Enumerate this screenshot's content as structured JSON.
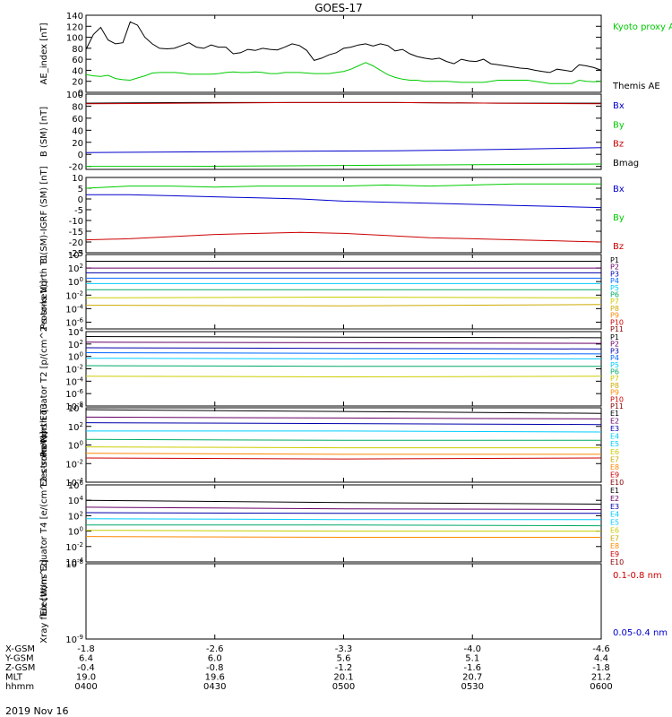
{
  "title": "GOES-17",
  "date_label": "2019 Nov 16",
  "colors": {
    "axis": "#000000",
    "black": "#000000",
    "green": "#00cc00",
    "blue": "#0000cc",
    "red": "#cc0000",
    "darkred": "#aa0000"
  },
  "time_axis": {
    "row_labels": [
      "X-GSM",
      "Y-GSM",
      "Z-GSM",
      "MLT",
      "hhmm"
    ],
    "ticks": [
      {
        "hhmm": "0400",
        "x_gsm": "-1.8",
        "y_gsm": "6.4",
        "z_gsm": "-0.4",
        "mlt": "19.0"
      },
      {
        "hhmm": "0430",
        "x_gsm": "-2.6",
        "y_gsm": "6.0",
        "z_gsm": "-0.8",
        "mlt": "19.6"
      },
      {
        "hhmm": "0500",
        "x_gsm": "-3.3",
        "y_gsm": "5.6",
        "z_gsm": "-1.2",
        "mlt": "20.1"
      },
      {
        "hhmm": "0530",
        "x_gsm": "-4.0",
        "y_gsm": "5.1",
        "z_gsm": "-1.6",
        "mlt": "20.7"
      },
      {
        "hhmm": "0600",
        "x_gsm": "-4.6",
        "y_gsm": "4.4",
        "z_gsm": "-1.8",
        "mlt": "21.2"
      }
    ]
  },
  "chart_data": [
    {
      "type": "line",
      "ylabel": "AE_index [nT]",
      "ylim": [
        0,
        140
      ],
      "yticks": [
        "0",
        "20",
        "40",
        "60",
        "80",
        "100",
        "120",
        "140"
      ],
      "legend": [
        {
          "label": "Kyoto proxy AE",
          "color": "#00cc00"
        },
        {
          "label": "Themis AE",
          "color": "#000000"
        }
      ],
      "series": [
        {
          "name": "Themis AE",
          "color": "#000000",
          "values": [
            78,
            105,
            118,
            95,
            88,
            90,
            128,
            122,
            100,
            88,
            80,
            79,
            80,
            85,
            90,
            82,
            80,
            86,
            82,
            82,
            70,
            72,
            78,
            76,
            80,
            78,
            77,
            82,
            88,
            85,
            76,
            58,
            62,
            68,
            72,
            80,
            82,
            86,
            88,
            84,
            88,
            85,
            75,
            78,
            70,
            65,
            62,
            60,
            62,
            56,
            52,
            60,
            57,
            56,
            60,
            52,
            50,
            48,
            46,
            44,
            43,
            40,
            38,
            36,
            42,
            40,
            38,
            50,
            48,
            45,
            40
          ]
        },
        {
          "name": "Kyoto proxy AE",
          "color": "#00cc00",
          "values": [
            32,
            30,
            29,
            31,
            25,
            23,
            22,
            26,
            30,
            35,
            36,
            36,
            36,
            35,
            33,
            33,
            33,
            33,
            34,
            36,
            37,
            36,
            36,
            37,
            36,
            34,
            34,
            36,
            36,
            36,
            35,
            34,
            34,
            34,
            36,
            38,
            42,
            48,
            54,
            48,
            40,
            32,
            27,
            24,
            22,
            22,
            20,
            20,
            20,
            20,
            19,
            18,
            18,
            18,
            18,
            20,
            22,
            22,
            22,
            22,
            22,
            20,
            18,
            16,
            16,
            16,
            16,
            22,
            20,
            19,
            20
          ]
        }
      ]
    },
    {
      "type": "line",
      "ylabel": "B (SM) [nT]",
      "ylim": [
        -25,
        100
      ],
      "yticks": [
        "-20",
        "0",
        "20",
        "40",
        "60",
        "80",
        "100"
      ],
      "legend": [
        {
          "label": "Bx",
          "color": "#0000cc"
        },
        {
          "label": "By",
          "color": "#00cc00"
        },
        {
          "label": "Bz",
          "color": "#cc0000"
        },
        {
          "label": "Bmag",
          "color": "#000000"
        }
      ],
      "series": [
        {
          "name": "Bmag",
          "color": "#000000",
          "values": [
            85,
            86,
            86,
            86,
            85,
            85
          ]
        },
        {
          "name": "Bz",
          "color": "#cc0000",
          "values": [
            84,
            85,
            86,
            86,
            85,
            84
          ]
        },
        {
          "name": "Bx",
          "color": "#0000cc",
          "values": [
            3,
            4,
            5,
            6,
            8,
            11
          ]
        },
        {
          "name": "By",
          "color": "#00cc00",
          "values": [
            -20,
            -20,
            -19,
            -18,
            -17,
            -16
          ]
        }
      ]
    },
    {
      "type": "line",
      "ylabel": "B (SM)-IGRF (SM) [nT]",
      "ylim": [
        -25,
        10
      ],
      "yticks": [
        "-25",
        "-20",
        "-15",
        "-10",
        "-5",
        "0",
        "5",
        "10"
      ],
      "legend": [
        {
          "label": "Bx",
          "color": "#0000cc"
        },
        {
          "label": "By",
          "color": "#00cc00"
        },
        {
          "label": "Bz",
          "color": "#cc0000"
        }
      ],
      "series": [
        {
          "name": "By",
          "color": "#00cc00",
          "values": [
            5,
            6,
            6,
            5.5,
            6,
            6,
            6,
            6.5,
            6,
            6.5,
            7,
            7,
            7
          ]
        },
        {
          "name": "Bx",
          "color": "#0000cc",
          "values": [
            2,
            2,
            1.5,
            1,
            0.5,
            0,
            -1,
            -1.5,
            -2,
            -2.5,
            -3,
            -3.5,
            -4
          ]
        },
        {
          "name": "Bz",
          "color": "#cc0000",
          "values": [
            -19,
            -18.5,
            -17.5,
            -16.5,
            -16,
            -15.5,
            -16,
            -17,
            -18,
            -18.5,
            -19,
            -19.5,
            -20
          ]
        }
      ]
    },
    {
      "type": "line",
      "log": true,
      "ylabel": "Protons North T1",
      "ylim": [
        -7,
        4
      ],
      "yticks": [
        "10^4",
        "10^2",
        "10^0",
        "10^-2",
        "10^-4",
        "10^-6"
      ],
      "legend": [
        {
          "label": "P1",
          "color": "#000000"
        },
        {
          "label": "P2",
          "color": "#660066"
        },
        {
          "label": "P3",
          "color": "#0000aa"
        },
        {
          "label": "P4",
          "color": "#0066ff"
        },
        {
          "label": "P5",
          "color": "#00ccff"
        },
        {
          "label": "P6",
          "color": "#00aa66"
        },
        {
          "label": "P7",
          "color": "#cccc00"
        },
        {
          "label": "P8",
          "color": "#ccaa00"
        },
        {
          "label": "P9",
          "color": "#ff8800"
        },
        {
          "label": "P10",
          "color": "#cc0000"
        },
        {
          "label": "P11",
          "color": "#880000"
        }
      ],
      "series": [
        {
          "name": "P1",
          "color": "#000000",
          "values": [
            3.0,
            3.0,
            3.0
          ]
        },
        {
          "name": "P2",
          "color": "#660066",
          "values": [
            2.0,
            2.0,
            2.0
          ]
        },
        {
          "name": "P3",
          "color": "#0000aa",
          "values": [
            1.3,
            1.3,
            1.3
          ]
        },
        {
          "name": "P4",
          "color": "#0066ff",
          "values": [
            0.5,
            0.5,
            0.5
          ]
        },
        {
          "name": "P5",
          "color": "#00ccff",
          "values": [
            -0.3,
            -0.3,
            -0.3
          ]
        },
        {
          "name": "P6",
          "color": "#00aa66",
          "values": [
            -1.2,
            -1.2,
            -1.2
          ]
        },
        {
          "name": "P7",
          "color": "#cccc00",
          "values": [
            -2.4,
            -2.3,
            -2.4
          ]
        },
        {
          "name": "P8",
          "color": "#ccaa00",
          "values": [
            -3.5,
            -3.6,
            -3.4
          ]
        }
      ]
    },
    {
      "type": "line",
      "log": true,
      "ylabel": "Protons Equator T2 [p/(cm^2-s-sr-keV)]",
      "ylim": [
        -8,
        4
      ],
      "yticks": [
        "10^4",
        "10^2",
        "10^0",
        "10^-2",
        "10^-4",
        "10^-6",
        "10^-8"
      ],
      "legend": [
        {
          "label": "P1",
          "color": "#000000"
        },
        {
          "label": "P2",
          "color": "#660066"
        },
        {
          "label": "P3",
          "color": "#0000aa"
        },
        {
          "label": "P4",
          "color": "#0066ff"
        },
        {
          "label": "P5",
          "color": "#00ccff"
        },
        {
          "label": "P6",
          "color": "#00aa66"
        },
        {
          "label": "P7",
          "color": "#cccc00"
        },
        {
          "label": "P8",
          "color": "#ccaa00"
        },
        {
          "label": "P9",
          "color": "#ff8800"
        },
        {
          "label": "P10",
          "color": "#cc0000"
        },
        {
          "label": "P11",
          "color": "#880000"
        }
      ],
      "series": [
        {
          "name": "P1",
          "color": "#000000",
          "values": [
            3.2,
            3.1,
            3.0
          ]
        },
        {
          "name": "P2",
          "color": "#660066",
          "values": [
            2.3,
            2.2,
            2.1
          ]
        },
        {
          "name": "P3",
          "color": "#0000aa",
          "values": [
            1.4,
            1.3,
            1.2
          ]
        },
        {
          "name": "P4",
          "color": "#0066ff",
          "values": [
            0.6,
            0.5,
            0.4
          ]
        },
        {
          "name": "P5",
          "color": "#00ccff",
          "values": [
            -0.3,
            -0.4,
            -0.4
          ]
        },
        {
          "name": "P6",
          "color": "#00aa66",
          "values": [
            -1.5,
            -1.6,
            -1.6
          ]
        },
        {
          "name": "P7",
          "color": "#cccc00",
          "values": [
            -3.2,
            -3.3,
            -3.2
          ]
        }
      ]
    },
    {
      "type": "line",
      "log": true,
      "ylabel": "Electrons North T3",
      "ylim": [
        -4,
        4
      ],
      "yticks": [
        "10^4",
        "10^2",
        "10^0",
        "10^-2",
        "10^-4"
      ],
      "legend": [
        {
          "label": "E1",
          "color": "#000000"
        },
        {
          "label": "E2",
          "color": "#660066"
        },
        {
          "label": "E3",
          "color": "#0000aa"
        },
        {
          "label": "E4",
          "color": "#00ccff"
        },
        {
          "label": "E5",
          "color": "#00ccff"
        },
        {
          "label": "E6",
          "color": "#cccc00"
        },
        {
          "label": "E7",
          "color": "#ccaa00"
        },
        {
          "label": "E8",
          "color": "#ff8800"
        },
        {
          "label": "E9",
          "color": "#cc0000"
        },
        {
          "label": "E10",
          "color": "#880000"
        }
      ],
      "series": [
        {
          "name": "E1",
          "color": "#000000",
          "values": [
            3.8,
            3.6,
            3.4
          ]
        },
        {
          "name": "E2",
          "color": "#660066",
          "values": [
            3.0,
            2.9,
            2.8
          ]
        },
        {
          "name": "E3",
          "color": "#0000aa",
          "values": [
            2.4,
            2.3,
            2.2
          ]
        },
        {
          "name": "E4",
          "color": "#00ccff",
          "values": [
            1.5,
            1.5,
            1.4
          ]
        },
        {
          "name": "E5",
          "color": "#00aa66",
          "values": [
            0.6,
            0.5,
            0.5
          ]
        },
        {
          "name": "E6",
          "color": "#cccc00",
          "values": [
            -0.2,
            -0.3,
            -0.3
          ]
        },
        {
          "name": "E7",
          "color": "#ff8800",
          "values": [
            -0.9,
            -1.0,
            -1.0
          ]
        },
        {
          "name": "E8",
          "color": "#cc0000",
          "values": [
            -1.4,
            -1.5,
            -1.4
          ]
        }
      ]
    },
    {
      "type": "line",
      "log": true,
      "ylabel": "Electrons Equator T4 [e/(cm^2-s-sr-keV)]",
      "ylim": [
        -4,
        6
      ],
      "yticks": [
        "10^6",
        "10^4",
        "10^2",
        "10^0",
        "10^-2",
        "10^-4"
      ],
      "legend": [
        {
          "label": "E1",
          "color": "#000000"
        },
        {
          "label": "E2",
          "color": "#660066"
        },
        {
          "label": "E3",
          "color": "#0000aa"
        },
        {
          "label": "E4",
          "color": "#00ccff"
        },
        {
          "label": "E5",
          "color": "#00ccff"
        },
        {
          "label": "E6",
          "color": "#cccc00"
        },
        {
          "label": "E7",
          "color": "#ccaa00"
        },
        {
          "label": "E8",
          "color": "#ff8800"
        },
        {
          "label": "E9",
          "color": "#cc0000"
        },
        {
          "label": "E10",
          "color": "#880000"
        }
      ],
      "series": [
        {
          "name": "E1",
          "color": "#000000",
          "values": [
            4.0,
            3.7,
            3.5
          ]
        },
        {
          "name": "E2",
          "color": "#660066",
          "values": [
            3.1,
            2.9,
            2.8
          ]
        },
        {
          "name": "E3",
          "color": "#0000aa",
          "values": [
            2.4,
            2.3,
            2.3
          ]
        },
        {
          "name": "E4",
          "color": "#00ccff",
          "values": [
            1.6,
            1.5,
            1.5
          ]
        },
        {
          "name": "E5",
          "color": "#00aa66",
          "values": [
            0.8,
            0.8,
            0.7
          ]
        },
        {
          "name": "E6",
          "color": "#cccc00",
          "values": [
            0.1,
            0.0,
            0.0
          ]
        },
        {
          "name": "E7",
          "color": "#ff8800",
          "values": [
            -0.7,
            -0.8,
            -0.8
          ]
        }
      ]
    },
    {
      "type": "line",
      "log": true,
      "ylabel": "Xray flux [W/m^2]",
      "ylim": [
        -9,
        -8
      ],
      "yticks": [
        "10^-8",
        "10^-9"
      ],
      "legend": [
        {
          "label": "0.1-0.8 nm",
          "color": "#cc0000"
        },
        {
          "label": "0.05-0.4 nm",
          "color": "#0000cc"
        }
      ],
      "series": []
    }
  ]
}
